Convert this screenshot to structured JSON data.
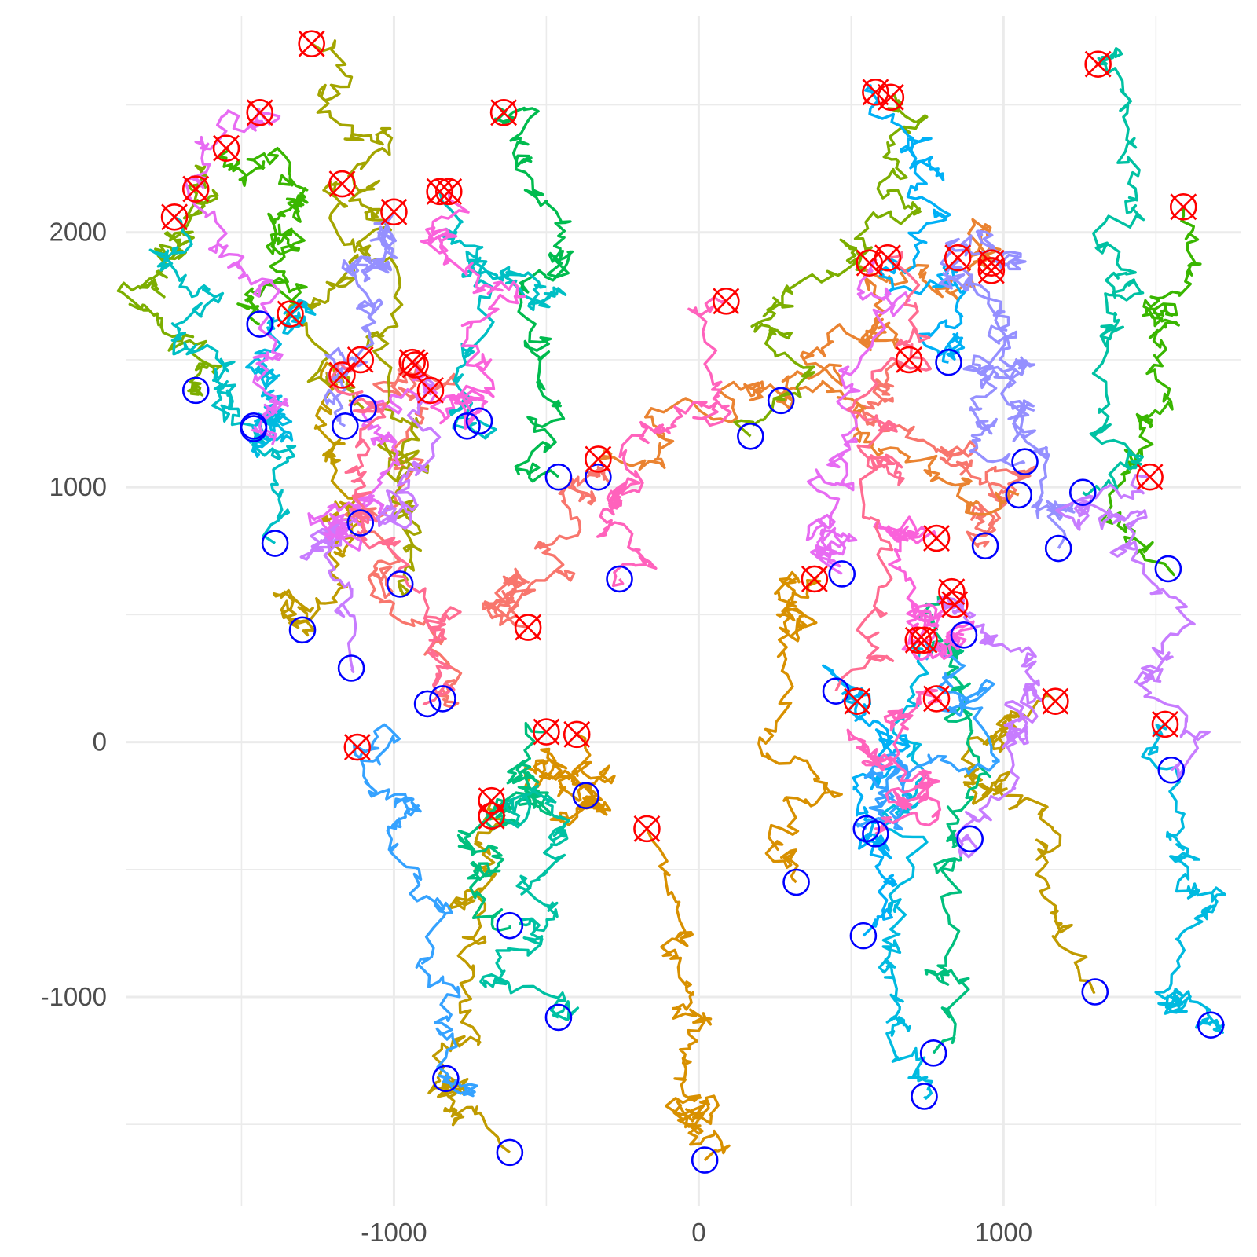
{
  "chart_data": {
    "type": "line",
    "title": "",
    "xlabel": "",
    "ylabel": "",
    "xlim": [
      -1880,
      1780
    ],
    "ylim": [
      -1820,
      2850
    ],
    "x_ticks": [
      -1000,
      0,
      1000
    ],
    "x_tick_labels": [
      "-1000",
      "0",
      "1000"
    ],
    "y_ticks": [
      -1000,
      0,
      1000,
      2000
    ],
    "y_tick_labels": [
      "-1000",
      "0",
      "1000",
      "2000"
    ],
    "grid": true,
    "legend": "none",
    "colors": {
      "start_marker": "#0000ff",
      "end_marker": "#ff0000",
      "grid": "#ebebeb",
      "background": "#ffffff"
    },
    "series": [
      {
        "color": "#F8766D",
        "start": [
          -840,
          170
        ],
        "end": [
          -930,
          1480
        ]
      },
      {
        "color": "#F8766D",
        "start": [
          -330,
          1040
        ],
        "end": [
          -560,
          450
        ]
      },
      {
        "color": "#F8766D",
        "start": [
          940,
          770
        ],
        "end": [
          690,
          1500
        ]
      },
      {
        "color": "#EA8331",
        "start": [
          270,
          1340
        ],
        "end": [
          960,
          1850
        ]
      },
      {
        "color": "#EA8331",
        "start": [
          1050,
          970
        ],
        "end": [
          -330,
          1110
        ]
      },
      {
        "color": "#D89000",
        "start": [
          -370,
          -210
        ],
        "end": [
          -400,
          30
        ]
      },
      {
        "color": "#D89000",
        "start": [
          20,
          -1640
        ],
        "end": [
          -170,
          -340
        ]
      },
      {
        "color": "#D89000",
        "start": [
          320,
          -550
        ],
        "end": [
          380,
          640
        ]
      },
      {
        "color": "#C09B00",
        "start": [
          -1300,
          440
        ],
        "end": [
          -1170,
          1440
        ]
      },
      {
        "color": "#C09B00",
        "start": [
          -620,
          -1610
        ],
        "end": [
          -680,
          -230
        ]
      },
      {
        "color": "#C09B00",
        "start": [
          1300,
          -980
        ],
        "end": [
          1170,
          160
        ]
      },
      {
        "color": "#A3A500",
        "start": [
          -980,
          620
        ],
        "end": [
          -1170,
          2190
        ]
      },
      {
        "color": "#A3A500",
        "start": [
          -1100,
          1310
        ],
        "end": [
          -1270,
          2740
        ]
      },
      {
        "color": "#7CAE00",
        "start": [
          -1650,
          1380
        ],
        "end": [
          -1650,
          2170
        ]
      },
      {
        "color": "#7CAE00",
        "start": [
          170,
          1200
        ],
        "end": [
          630,
          2530
        ]
      },
      {
        "color": "#39B600",
        "start": [
          -1440,
          1640
        ],
        "end": [
          -1550,
          2330
        ]
      },
      {
        "color": "#39B600",
        "start": [
          1540,
          680
        ],
        "end": [
          1590,
          2100
        ]
      },
      {
        "color": "#00BB4E",
        "start": [
          -460,
          1040
        ],
        "end": [
          -640,
          2470
        ]
      },
      {
        "color": "#00BF7D",
        "start": [
          -620,
          -720
        ],
        "end": [
          -500,
          40
        ]
      },
      {
        "color": "#00BF7D",
        "start": [
          770,
          -1220
        ],
        "end": [
          830,
          590
        ]
      },
      {
        "color": "#00C1A3",
        "start": [
          -460,
          -1080
        ],
        "end": [
          -680,
          -290
        ]
      },
      {
        "color": "#00C1A3",
        "start": [
          1260,
          980
        ],
        "end": [
          1310,
          2660
        ]
      },
      {
        "color": "#00BFC4",
        "start": [
          -1390,
          780
        ],
        "end": [
          -1720,
          2060
        ]
      },
      {
        "color": "#00BFC4",
        "start": [
          -720,
          1260
        ],
        "end": [
          -850,
          2160
        ]
      },
      {
        "color": "#00BAE0",
        "start": [
          -1460,
          1230
        ],
        "end": [
          -1340,
          1680
        ]
      },
      {
        "color": "#00BAE0",
        "start": [
          1680,
          -1110
        ],
        "end": [
          1530,
          70
        ]
      },
      {
        "color": "#00BAE0",
        "start": [
          740,
          -1390
        ],
        "end": [
          720,
          400
        ]
      },
      {
        "color": "#00B0F6",
        "start": [
          540,
          -760
        ],
        "end": [
          520,
          160
        ]
      },
      {
        "color": "#00B0F6",
        "start": [
          820,
          1490
        ],
        "end": [
          580,
          2550
        ]
      },
      {
        "color": "#35A2FF",
        "start": [
          -830,
          -1320
        ],
        "end": [
          -1120,
          -20
        ]
      },
      {
        "color": "#35A2FF",
        "start": [
          550,
          -340
        ],
        "end": [
          740,
          400
        ]
      },
      {
        "color": "#9590FF",
        "start": [
          1070,
          1100
        ],
        "end": [
          960,
          1880
        ]
      },
      {
        "color": "#9590FF",
        "start": [
          1180,
          760
        ],
        "end": [
          850,
          1900
        ]
      },
      {
        "color": "#9590FF",
        "start": [
          -1160,
          1240
        ],
        "end": [
          -1000,
          2080
        ]
      },
      {
        "color": "#C77CFF",
        "start": [
          -1140,
          290
        ],
        "end": [
          -880,
          1380
        ]
      },
      {
        "color": "#C77CFF",
        "start": [
          1550,
          -110
        ],
        "end": [
          1480,
          1040
        ]
      },
      {
        "color": "#C77CFF",
        "start": [
          890,
          -380
        ],
        "end": [
          840,
          540
        ]
      },
      {
        "color": "#E76BF3",
        "start": [
          -1460,
          1240
        ],
        "end": [
          -1440,
          2470
        ]
      },
      {
        "color": "#E76BF3",
        "start": [
          470,
          660
        ],
        "end": [
          560,
          1880
        ]
      },
      {
        "color": "#E76BF3",
        "start": [
          -1110,
          860
        ],
        "end": [
          -940,
          1490
        ]
      },
      {
        "color": "#FA62DB",
        "start": [
          -760,
          1240
        ],
        "end": [
          -820,
          2160
        ]
      },
      {
        "color": "#FA62DB",
        "start": [
          870,
          420
        ],
        "end": [
          780,
          800
        ]
      },
      {
        "color": "#FF62BC",
        "start": [
          -260,
          640
        ],
        "end": [
          90,
          1730
        ]
      },
      {
        "color": "#FF62BC",
        "start": [
          580,
          -360
        ],
        "end": [
          780,
          170
        ]
      },
      {
        "color": "#FF6C91",
        "start": [
          -890,
          150
        ],
        "end": [
          -1110,
          1500
        ]
      },
      {
        "color": "#FF6C91",
        "start": [
          450,
          200
        ],
        "end": [
          620,
          1900
        ]
      }
    ]
  }
}
